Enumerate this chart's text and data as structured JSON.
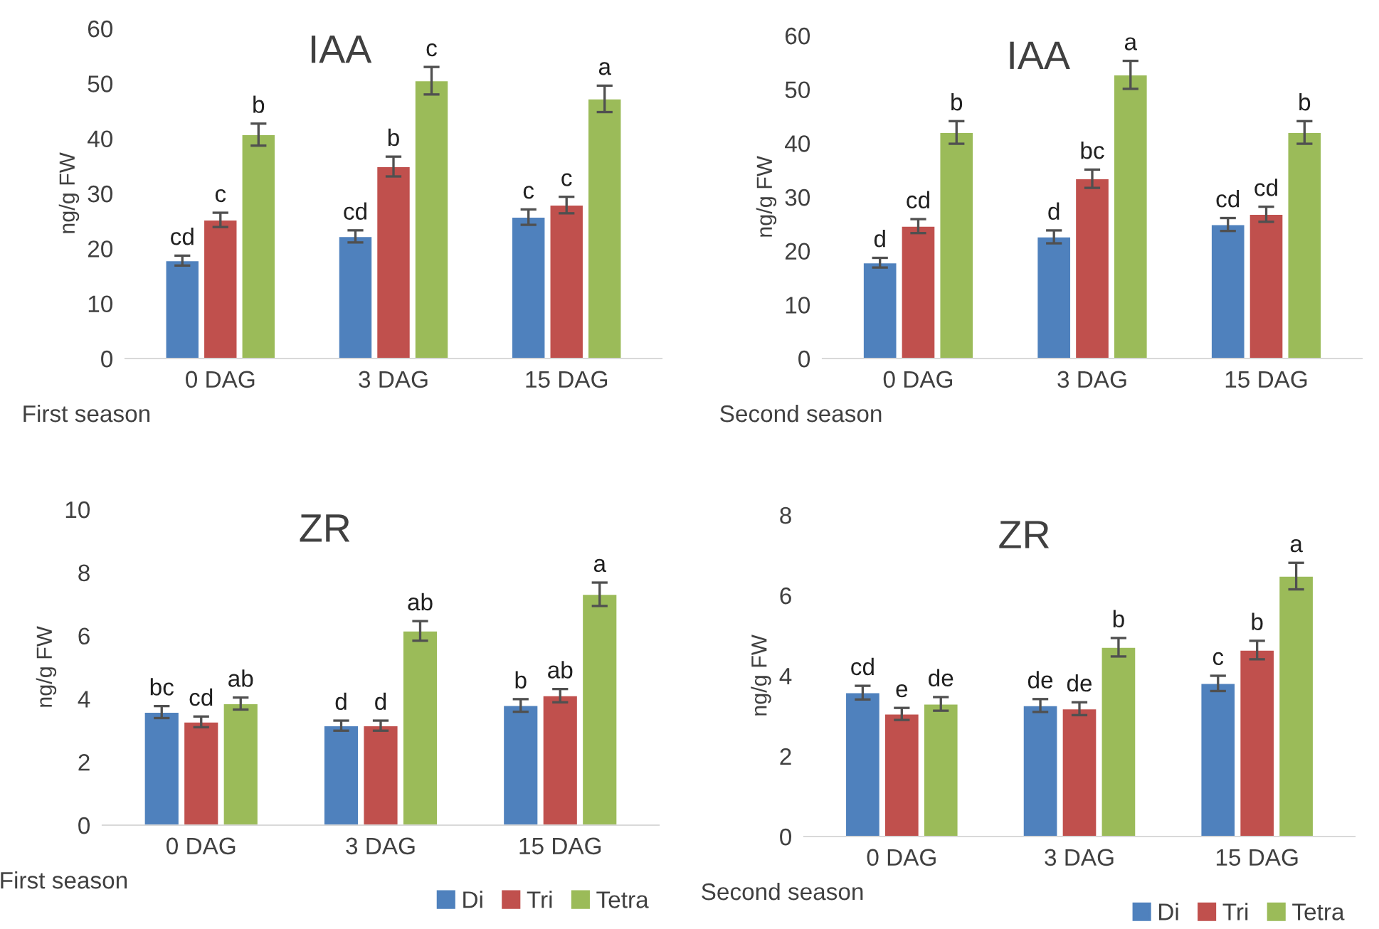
{
  "chart_data": [
    {
      "type": "bar",
      "title": "IAA",
      "ylabel": "ng/g FW",
      "categories": [
        "0 DAG",
        "3 DAG",
        "15 DAG"
      ],
      "ylim": [
        0,
        60
      ],
      "yticks": [
        0,
        10,
        20,
        30,
        40,
        50,
        60
      ],
      "grid": false,
      "legend": false,
      "series": [
        {
          "color": "#4f81bd",
          "values": [
            17.8,
            22.2,
            25.7
          ],
          "errors": [
            0.9,
            1.1,
            1.4
          ]
        },
        {
          "color": "#c0504d",
          "values": [
            25.2,
            34.9,
            27.9
          ],
          "errors": [
            1.3,
            1.8,
            1.5
          ]
        },
        {
          "color": "#9bbb59",
          "values": [
            40.7,
            50.5,
            47.2
          ],
          "errors": [
            2.0,
            2.5,
            2.4
          ]
        }
      ],
      "annotations": [
        "cd",
        "c",
        "b",
        "cd",
        "b",
        "c",
        "c",
        "c",
        "a",
        "First season"
      ]
    },
    {
      "type": "bar",
      "title": "IAA",
      "ylabel": "ng/g FW",
      "categories": [
        "0 DAG",
        "3 DAG",
        "15 DAG"
      ],
      "ylim": [
        0,
        60
      ],
      "yticks": [
        0,
        10,
        20,
        30,
        40,
        50,
        60
      ],
      "grid": false,
      "legend": false,
      "series": [
        {
          "color": "#4f81bd",
          "values": [
            17.8,
            22.6,
            24.9
          ],
          "errors": [
            0.9,
            1.2,
            1.2
          ]
        },
        {
          "color": "#c0504d",
          "values": [
            24.6,
            33.4,
            26.8
          ],
          "errors": [
            1.3,
            1.7,
            1.4
          ]
        },
        {
          "color": "#9bbb59",
          "values": [
            42.0,
            52.7,
            42.0
          ],
          "errors": [
            2.1,
            2.6,
            2.1
          ]
        }
      ],
      "annotations": [
        "d",
        "cd",
        "b",
        "d",
        "bc",
        "a",
        "cd",
        "cd",
        "b",
        "Second season"
      ]
    },
    {
      "type": "bar",
      "title": "ZR",
      "ylabel": "ng/g FW",
      "categories": [
        "0 DAG",
        "3 DAG",
        "15 DAG"
      ],
      "ylim": [
        0,
        10
      ],
      "yticks": [
        0,
        2,
        4,
        6,
        8,
        10
      ],
      "grid": false,
      "legend": "bottom right",
      "series": [
        {
          "name": "Di",
          "color": "#4f81bd",
          "values": [
            3.58,
            3.15,
            3.79
          ],
          "errors": [
            0.19,
            0.16,
            0.2
          ]
        },
        {
          "name": "Tri",
          "color": "#c0504d",
          "values": [
            3.27,
            3.15,
            4.1
          ],
          "errors": [
            0.17,
            0.16,
            0.21
          ]
        },
        {
          "name": "Tetra",
          "color": "#9bbb59",
          "values": [
            3.85,
            6.15,
            7.31
          ],
          "errors": [
            0.19,
            0.31,
            0.37
          ]
        }
      ],
      "annotations": [
        "bc",
        "cd",
        "ab",
        "d",
        "d",
        "ab",
        "b",
        "ab",
        "a",
        "First season"
      ]
    },
    {
      "type": "bar",
      "title": "ZR",
      "ylabel": "ng/g FW",
      "categories": [
        "0 DAG",
        "3 DAG",
        "15 DAG"
      ],
      "ylim": [
        0,
        8
      ],
      "yticks": [
        0,
        2,
        4,
        6,
        8
      ],
      "grid": false,
      "legend": "bottom right",
      "series": [
        {
          "name": "Di",
          "color": "#4f81bd",
          "values": [
            3.58,
            3.26,
            3.81
          ],
          "errors": [
            0.17,
            0.16,
            0.19
          ]
        },
        {
          "name": "Tri",
          "color": "#c0504d",
          "values": [
            3.05,
            3.18,
            4.64
          ],
          "errors": [
            0.15,
            0.16,
            0.23
          ]
        },
        {
          "name": "Tetra",
          "color": "#9bbb59",
          "values": [
            3.3,
            4.71,
            6.48
          ],
          "errors": [
            0.17,
            0.23,
            0.33
          ]
        }
      ],
      "annotations": [
        "cd",
        "e",
        "de",
        "de",
        "de",
        "b",
        "c",
        "b",
        "a",
        "Second season"
      ]
    }
  ]
}
